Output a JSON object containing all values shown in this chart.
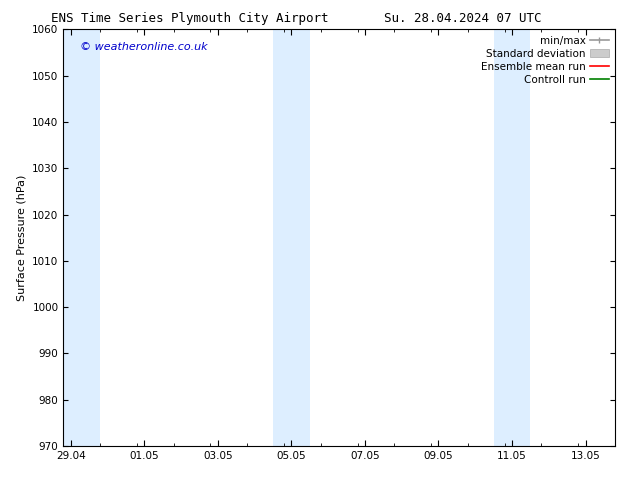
{
  "title_left": "ENS Time Series Plymouth City Airport",
  "title_right": "Su. 28.04.2024 07 UTC",
  "ylabel": "Surface Pressure (hPa)",
  "ylim": [
    970,
    1060
  ],
  "yticks": [
    970,
    980,
    990,
    1000,
    1010,
    1020,
    1030,
    1040,
    1050,
    1060
  ],
  "xtick_labels": [
    "29.04",
    "01.05",
    "03.05",
    "05.05",
    "07.05",
    "09.05",
    "11.05",
    "13.05"
  ],
  "xtick_positions": [
    0,
    2,
    4,
    6,
    8,
    10,
    12,
    14
  ],
  "x_min": -0.2,
  "x_max": 14.8,
  "shaded_bands": [
    {
      "x_start": -0.2,
      "x_end": 0.8
    },
    {
      "x_start": 5.5,
      "x_end": 6.5
    },
    {
      "x_start": 11.5,
      "x_end": 12.5
    }
  ],
  "shaded_color": "#ddeeff",
  "background_color": "#ffffff",
  "legend_labels": [
    "min/max",
    "Standard deviation",
    "Ensemble mean run",
    "Controll run"
  ],
  "legend_line_colors": [
    "#999999",
    "#cccccc",
    "#ff0000",
    "#008000"
  ],
  "watermark_text": "© weatheronline.co.uk",
  "watermark_color": "#0000cc",
  "tick_label_fontsize": 7.5,
  "title_fontsize": 9,
  "ylabel_fontsize": 8,
  "legend_fontsize": 7.5,
  "watermark_fontsize": 8
}
